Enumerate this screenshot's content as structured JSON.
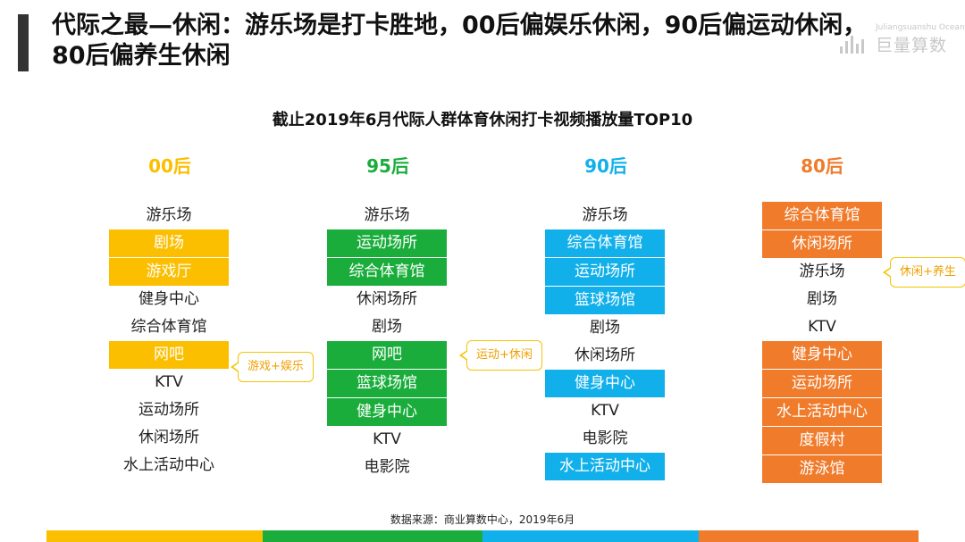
{
  "header": {
    "title": "代际之最—休闲：游乐场是打卡胜地，00后偏娱乐休闲，90后偏运动休闲，80后偏养生休闲",
    "logo_en": "Juliangsuanshu Ocean Insights",
    "logo_cn": "巨量算数"
  },
  "chart_title": "截止2019年6月代际人群体育休闲打卡视频播放量TOP10",
  "colors": {
    "c00": "#fbbf00",
    "c95": "#1aad3c",
    "c90": "#12b0ea",
    "c80": "#f07b2b"
  },
  "columns": [
    {
      "label": "00后",
      "color": "#fbbf00",
      "items": [
        {
          "text": "游乐场",
          "hl": false
        },
        {
          "text": "剧场",
          "hl": true
        },
        {
          "text": "游戏厅",
          "hl": true
        },
        {
          "text": "健身中心",
          "hl": false
        },
        {
          "text": "综合体育馆",
          "hl": false
        },
        {
          "text": "网吧",
          "hl": true
        },
        {
          "text": "KTV",
          "hl": false
        },
        {
          "text": "运动场所",
          "hl": false
        },
        {
          "text": "休闲场所",
          "hl": false
        },
        {
          "text": "水上活动中心",
          "hl": false
        }
      ]
    },
    {
      "label": "95后",
      "color": "#1aad3c",
      "items": [
        {
          "text": "游乐场",
          "hl": false
        },
        {
          "text": "运动场所",
          "hl": true
        },
        {
          "text": "综合体育馆",
          "hl": true
        },
        {
          "text": "休闲场所",
          "hl": false
        },
        {
          "text": "剧场",
          "hl": false
        },
        {
          "text": "网吧",
          "hl": true
        },
        {
          "text": "篮球场馆",
          "hl": true
        },
        {
          "text": "健身中心",
          "hl": true
        },
        {
          "text": "KTV",
          "hl": false
        },
        {
          "text": "电影院",
          "hl": false
        }
      ]
    },
    {
      "label": "90后",
      "color": "#12b0ea",
      "items": [
        {
          "text": "游乐场",
          "hl": false
        },
        {
          "text": "综合体育馆",
          "hl": true
        },
        {
          "text": "运动场所",
          "hl": true
        },
        {
          "text": "篮球场馆",
          "hl": true
        },
        {
          "text": "剧场",
          "hl": false
        },
        {
          "text": "休闲场所",
          "hl": false
        },
        {
          "text": "健身中心",
          "hl": true
        },
        {
          "text": "KTV",
          "hl": false
        },
        {
          "text": "电影院",
          "hl": false
        },
        {
          "text": "水上活动中心",
          "hl": true
        }
      ]
    },
    {
      "label": "80后",
      "color": "#f07b2b",
      "items": [
        {
          "text": "综合体育馆",
          "hl": true
        },
        {
          "text": "休闲场所",
          "hl": true
        },
        {
          "text": "游乐场",
          "hl": false
        },
        {
          "text": "剧场",
          "hl": false
        },
        {
          "text": "KTV",
          "hl": false
        },
        {
          "text": "健身中心",
          "hl": true
        },
        {
          "text": "运动场所",
          "hl": true
        },
        {
          "text": "水上活动中心",
          "hl": true
        },
        {
          "text": "度假村",
          "hl": true
        },
        {
          "text": "游泳馆",
          "hl": true
        }
      ]
    }
  ],
  "callouts": {
    "c00": "游戏+娱乐",
    "c95": "运动+休闲",
    "c80": "休闲+养生"
  },
  "source": "数据来源：商业算数中心，2019年6月"
}
